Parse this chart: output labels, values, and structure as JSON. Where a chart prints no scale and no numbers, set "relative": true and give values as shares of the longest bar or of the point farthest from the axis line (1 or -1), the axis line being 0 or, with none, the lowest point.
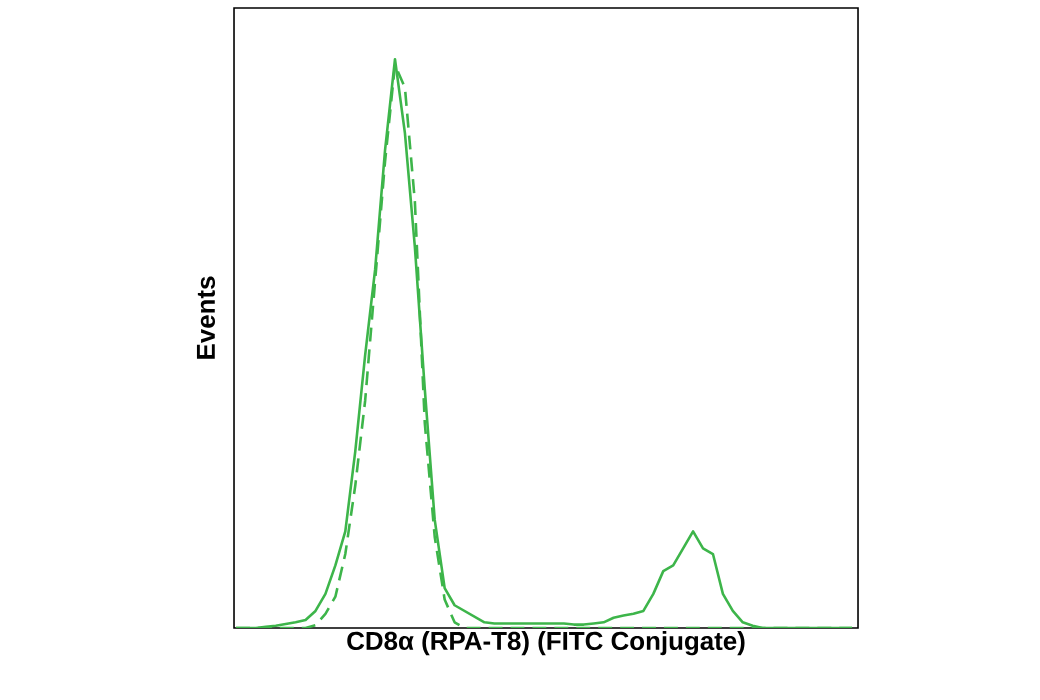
{
  "chart_data": {
    "type": "line",
    "relative": true,
    "xlabel": "CD8α (RPA-T8) (FITC Conjugate)",
    "ylabel": "Events",
    "categories": [
      null,
      null,
      null,
      null,
      null,
      null,
      null,
      null,
      null,
      null,
      null,
      null,
      null,
      null,
      null,
      null,
      null,
      null,
      null,
      null,
      null,
      null,
      null,
      null,
      null,
      null,
      null,
      null,
      null,
      null,
      null,
      null,
      null,
      null,
      null,
      null,
      null,
      null,
      null,
      null,
      null,
      null,
      null,
      null,
      null,
      null,
      null,
      null,
      null,
      null,
      null,
      null,
      null,
      null,
      null,
      null,
      null,
      null,
      null,
      null,
      null,
      null,
      null
    ],
    "series": [
      {
        "color": "#3db54a",
        "line_style": "solid",
        "values": [
          0,
          0,
          0,
          0.002,
          0.004,
          0.007,
          0.01,
          0.014,
          0.03,
          0.06,
          0.11,
          0.17,
          0.31,
          0.48,
          0.63,
          0.84,
          1.0,
          0.87,
          0.67,
          0.42,
          0.19,
          0.07,
          0.04,
          0.03,
          0.02,
          0.01,
          0.008,
          0.008,
          0.008,
          0.008,
          0.008,
          0.008,
          0.008,
          0.008,
          0.006,
          0.006,
          0.008,
          0.01,
          0.018,
          0.022,
          0.025,
          0.03,
          0.06,
          0.1,
          0.11,
          0.14,
          0.17,
          0.14,
          0.13,
          0.06,
          0.03,
          0.01,
          0.004,
          0,
          0,
          0,
          0,
          0,
          0,
          0,
          0,
          0,
          0
        ]
      },
      {
        "color": "#3db54a",
        "line_style": "dashed",
        "values": [
          0,
          0,
          0,
          0,
          0,
          0,
          0,
          0,
          0.005,
          0.025,
          0.055,
          0.13,
          0.25,
          0.4,
          0.61,
          0.82,
          0.99,
          0.95,
          0.75,
          0.36,
          0.16,
          0.05,
          0.01,
          0,
          0,
          0,
          0,
          0,
          0,
          0,
          0,
          0,
          0,
          0,
          0,
          0,
          0,
          0,
          0,
          0,
          0,
          0,
          0,
          0,
          0,
          0,
          0,
          0,
          0,
          0,
          0,
          0,
          0,
          0,
          0,
          0,
          0,
          0,
          0,
          0,
          0,
          0,
          0
        ]
      }
    ]
  }
}
